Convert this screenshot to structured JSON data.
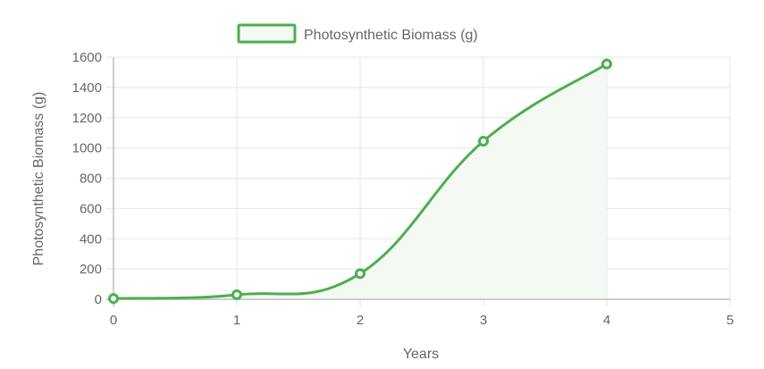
{
  "chart_data": {
    "type": "line",
    "title": "",
    "xlabel": "Years",
    "ylabel": "Photosynthetic Biomass (g)",
    "xlim": [
      0,
      5
    ],
    "ylim": [
      0,
      1600
    ],
    "x_ticks": [
      "0",
      "1",
      "2",
      "3",
      "4",
      "5"
    ],
    "y_ticks": [
      "0",
      "200",
      "400",
      "600",
      "800",
      "1000",
      "1200",
      "1400",
      "1600"
    ],
    "grid": true,
    "legend_position": "top-center",
    "series": [
      {
        "name": "Photosynthetic Biomass (g)",
        "x": [
          0,
          1,
          2,
          3,
          4
        ],
        "values": [
          5,
          30,
          170,
          1045,
          1555
        ],
        "color": "#4caf50",
        "fill_color": "#f4f9f4"
      }
    ]
  }
}
